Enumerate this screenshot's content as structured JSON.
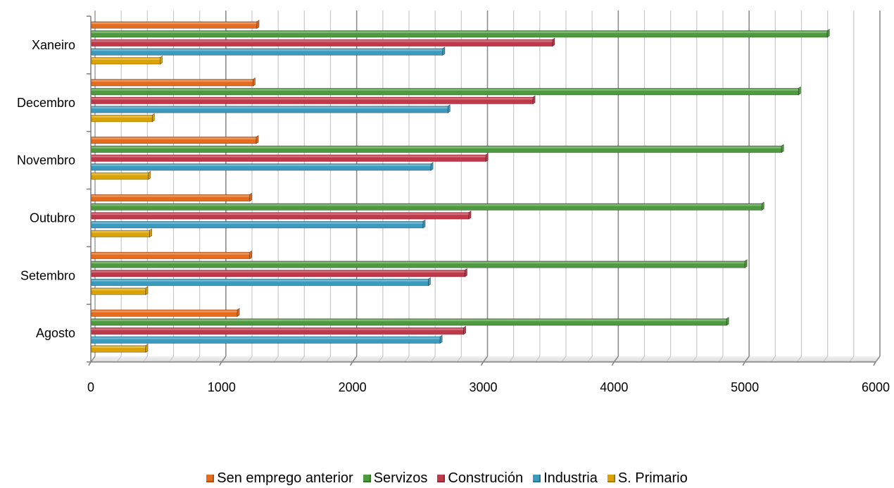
{
  "chart_data": {
    "type": "bar",
    "orientation": "horizontal",
    "categories": [
      "Xaneiro",
      "Decembro",
      "Novembro",
      "Outubro",
      "Setembro",
      "Agosto"
    ],
    "series": [
      {
        "name": "Sen emprego anterior",
        "color": "#e46c1f",
        "values": [
          1270,
          1240,
          1265,
          1215,
          1215,
          1120
        ]
      },
      {
        "name": "Servizos",
        "color": "#4e9a3e",
        "values": [
          5630,
          5410,
          5280,
          5130,
          5000,
          4860
        ]
      },
      {
        "name": "Construción",
        "color": "#c0394b",
        "values": [
          3530,
          3380,
          3020,
          2890,
          2860,
          2850
        ]
      },
      {
        "name": "Industria",
        "color": "#3a9bbf",
        "values": [
          2690,
          2730,
          2600,
          2540,
          2580,
          2670
        ]
      },
      {
        "name": "S. Primario",
        "color": "#dba200",
        "values": [
          530,
          470,
          440,
          450,
          420,
          420
        ]
      }
    ],
    "xlim": [
      0,
      6000
    ],
    "xticks": [
      "0",
      "1000",
      "2000",
      "3000",
      "4000",
      "5000",
      "6000"
    ],
    "minor_step": 200,
    "grid": true,
    "legend_position": "bottom"
  }
}
